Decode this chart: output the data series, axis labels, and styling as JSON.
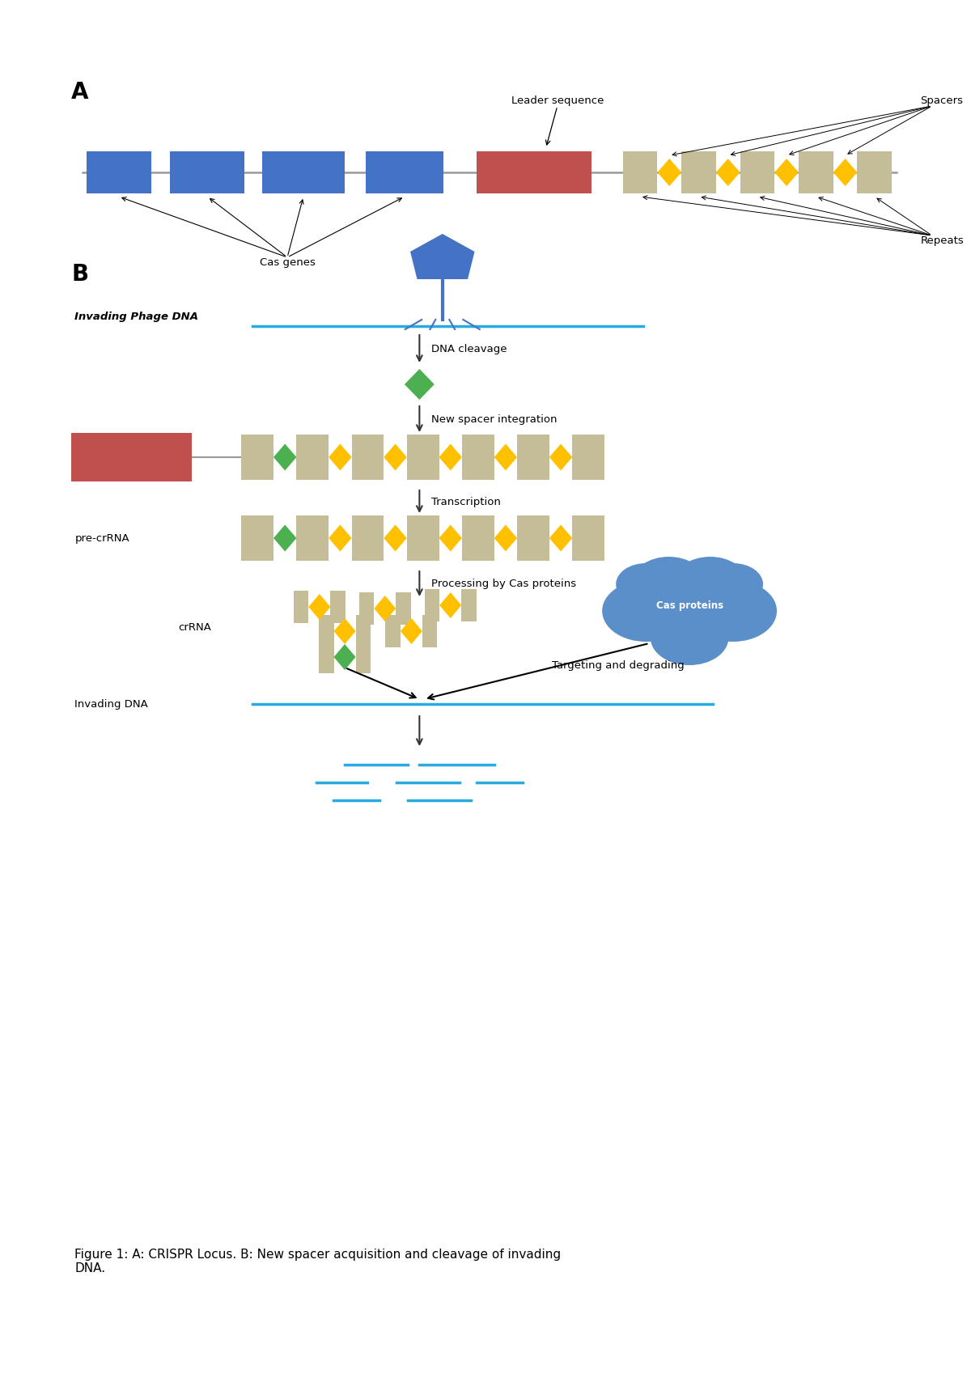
{
  "bg_color": "#ffffff",
  "blue_box_color": "#4472C4",
  "red_box_color": "#C0504D",
  "tan_box_color": "#C4BD97",
  "gold_diamond_color": "#FFC000",
  "green_diamond_color": "#4CAF50",
  "blue_line_color": "#29ABE2",
  "phage_blue_color": "#4472C4",
  "cas_cloud_color": "#5B8FC9",
  "arrow_color": "#333333",
  "label_A": "A",
  "label_B": "B",
  "leader_seq_label": "Leader sequence",
  "spacers_label": "Spacers",
  "repeats_label": "Repeats",
  "cas_genes_label": "Cas genes",
  "invading_phage_label": "Invading Phage DNA",
  "dna_cleavage_label": "DNA cleavage",
  "new_spacer_label": "New spacer integration",
  "transcription_label": "Transcription",
  "processing_label": "Processing by Cas proteins",
  "crRNA_label": "crRNA",
  "pre_crRNA_label": "pre-crRNA",
  "invading_dna_label": "Invading DNA",
  "targeting_label": "Targeting and degrading",
  "cas_proteins_label": "Cas proteins",
  "caption": "Figure 1: A: CRISPR Locus. B: New spacer acquisition and cleavage of invading\nDNA."
}
